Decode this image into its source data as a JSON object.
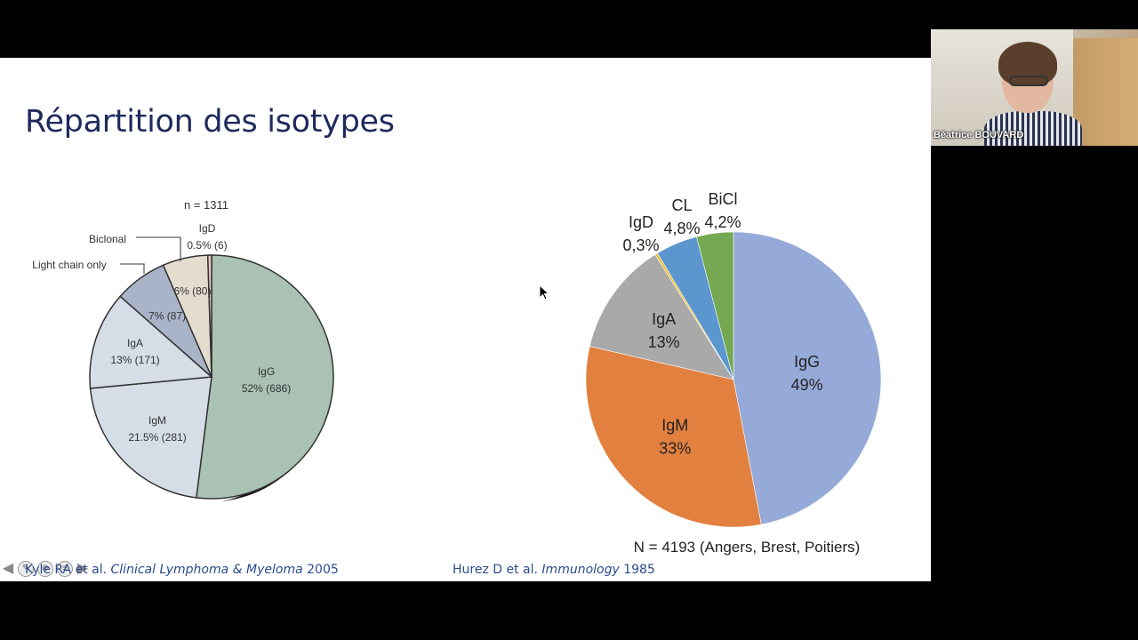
{
  "slide": {
    "title": "Répartition des isotypes",
    "citation_left": {
      "authors": "Kyle RA et al.",
      "journal": "Clinical Lymphoma & Myeloma",
      "year": "2005"
    },
    "citation_right": {
      "authors": "Hurez D et al.",
      "journal": "Immunology",
      "year": "1985"
    }
  },
  "webcam": {
    "name": "Béatrice BOUVARD"
  },
  "chart_data": [
    {
      "type": "pie",
      "title": "n = 1311",
      "colors": [
        "#a9c2b4",
        "#d5dde6",
        "#d5dde6",
        "#a9b4c8",
        "#e4dccf",
        "#e8c9c2"
      ],
      "slices": [
        {
          "label": "IgG",
          "value": 52,
          "value_text": "52% (686)",
          "count": 686
        },
        {
          "label": "IgM",
          "value": 21.5,
          "value_text": "21.5% (281)",
          "count": 281
        },
        {
          "label": "IgA",
          "value": 13,
          "value_text": "13% (171)",
          "count": 171
        },
        {
          "label": "Light chain only",
          "value": 7,
          "value_text": "7% (87)",
          "count": 87
        },
        {
          "label": "Biclonal",
          "value": 6,
          "value_text": "6% (80)",
          "count": 80
        },
        {
          "label": "IgD",
          "value": 0.5,
          "value_text": "0.5% (6)",
          "count": 6
        }
      ]
    },
    {
      "type": "pie",
      "title": "N = 4193 (Angers, Brest, Poitiers)",
      "colors": [
        "#95aad8",
        "#e2803f",
        "#a9a9a9",
        "#f0be2a",
        "#5b96cf",
        "#74a852"
      ],
      "slices": [
        {
          "label": "IgG",
          "value": 49,
          "value_text": "49%"
        },
        {
          "label": "IgM",
          "value": 33,
          "value_text": "33%"
        },
        {
          "label": "IgA",
          "value": 13,
          "value_text": "13%"
        },
        {
          "label": "IgD",
          "value": 0.3,
          "value_text": "0,3%"
        },
        {
          "label": "CL",
          "value": 4.8,
          "value_text": "4,8%"
        },
        {
          "label": "BiCl",
          "value": 4.2,
          "value_text": "4,2%"
        }
      ]
    }
  ]
}
